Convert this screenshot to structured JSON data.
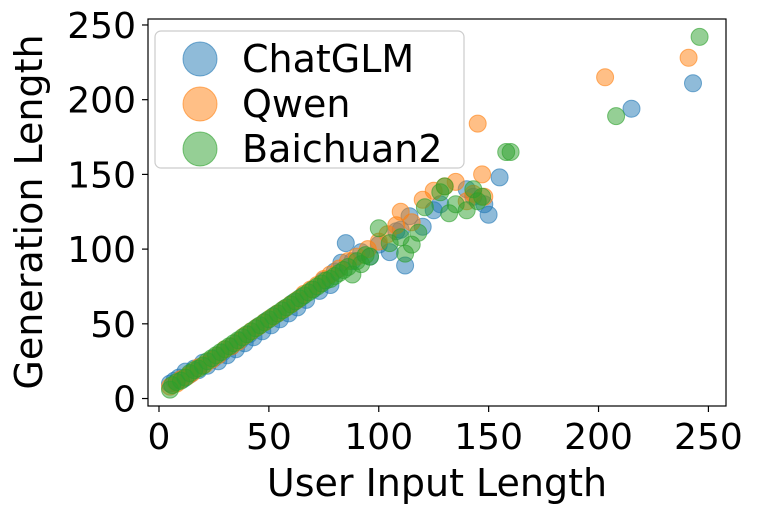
{
  "chart_data": {
    "type": "scatter",
    "xlabel": "User Input Length",
    "ylabel": "Generation Length",
    "xlim": [
      -5,
      258
    ],
    "ylim": [
      -5,
      254
    ],
    "xticks": [
      0,
      50,
      100,
      150,
      200,
      250
    ],
    "yticks": [
      0,
      50,
      100,
      150,
      200,
      250
    ],
    "grid": false,
    "legend_position": "upper-left",
    "series": [
      {
        "name": "ChatGLM",
        "color": "#1f77b4",
        "points": [
          [
            5,
            10
          ],
          [
            7,
            12
          ],
          [
            9,
            14
          ],
          [
            11,
            13
          ],
          [
            12,
            18
          ],
          [
            14,
            16
          ],
          [
            16,
            20
          ],
          [
            18,
            19
          ],
          [
            20,
            24
          ],
          [
            22,
            22
          ],
          [
            25,
            27
          ],
          [
            27,
            25
          ],
          [
            29,
            31
          ],
          [
            31,
            29
          ],
          [
            33,
            35
          ],
          [
            35,
            33
          ],
          [
            37,
            39
          ],
          [
            39,
            37
          ],
          [
            41,
            43
          ],
          [
            43,
            41
          ],
          [
            45,
            48
          ],
          [
            47,
            45
          ],
          [
            49,
            52
          ],
          [
            51,
            49
          ],
          [
            53,
            56
          ],
          [
            55,
            53
          ],
          [
            57,
            60
          ],
          [
            59,
            57
          ],
          [
            61,
            64
          ],
          [
            63,
            61
          ],
          [
            65,
            68
          ],
          [
            67,
            66
          ],
          [
            70,
            73
          ],
          [
            73,
            72
          ],
          [
            75,
            79
          ],
          [
            78,
            76
          ],
          [
            80,
            85
          ],
          [
            83,
            91
          ],
          [
            85,
            104
          ],
          [
            88,
            92
          ],
          [
            92,
            98
          ],
          [
            96,
            95
          ],
          [
            100,
            103
          ],
          [
            105,
            98
          ],
          [
            108,
            112
          ],
          [
            110,
            113
          ],
          [
            112,
            89
          ],
          [
            114,
            122
          ],
          [
            120,
            115
          ],
          [
            125,
            126
          ],
          [
            128,
            130
          ],
          [
            140,
            140
          ],
          [
            143,
            135
          ],
          [
            148,
            130
          ],
          [
            150,
            123
          ],
          [
            155,
            148
          ],
          [
            215,
            194
          ],
          [
            243,
            211
          ]
        ]
      },
      {
        "name": "Qwen",
        "color": "#ff7f0e",
        "points": [
          [
            5,
            8
          ],
          [
            8,
            10
          ],
          [
            10,
            13
          ],
          [
            13,
            15
          ],
          [
            15,
            17
          ],
          [
            18,
            21
          ],
          [
            21,
            23
          ],
          [
            24,
            26
          ],
          [
            27,
            29
          ],
          [
            30,
            33
          ],
          [
            33,
            35
          ],
          [
            36,
            38
          ],
          [
            39,
            42
          ],
          [
            42,
            45
          ],
          [
            45,
            48
          ],
          [
            48,
            51
          ],
          [
            51,
            54
          ],
          [
            54,
            57
          ],
          [
            57,
            60
          ],
          [
            60,
            63
          ],
          [
            63,
            66
          ],
          [
            66,
            70
          ],
          [
            69,
            73
          ],
          [
            72,
            76
          ],
          [
            75,
            80
          ],
          [
            78,
            83
          ],
          [
            82,
            87
          ],
          [
            86,
            92
          ],
          [
            90,
            95
          ],
          [
            95,
            100
          ],
          [
            100,
            105
          ],
          [
            104,
            110
          ],
          [
            108,
            116
          ],
          [
            110,
            125
          ],
          [
            115,
            118
          ],
          [
            120,
            133
          ],
          [
            125,
            139
          ],
          [
            130,
            142
          ],
          [
            135,
            145
          ],
          [
            140,
            132
          ],
          [
            143,
            137
          ],
          [
            145,
            184
          ],
          [
            147,
            150
          ],
          [
            148,
            135
          ],
          [
            203,
            215
          ],
          [
            241,
            228
          ]
        ]
      },
      {
        "name": "Baichuan2",
        "color": "#2ca02c",
        "points": [
          [
            5,
            6
          ],
          [
            6,
            9
          ],
          [
            8,
            11
          ],
          [
            10,
            12
          ],
          [
            12,
            14
          ],
          [
            14,
            17
          ],
          [
            16,
            19
          ],
          [
            18,
            20
          ],
          [
            20,
            22
          ],
          [
            22,
            25
          ],
          [
            24,
            27
          ],
          [
            26,
            29
          ],
          [
            28,
            31
          ],
          [
            30,
            33
          ],
          [
            32,
            35
          ],
          [
            34,
            37
          ],
          [
            36,
            39
          ],
          [
            38,
            41
          ],
          [
            40,
            43
          ],
          [
            42,
            45
          ],
          [
            44,
            47
          ],
          [
            46,
            49
          ],
          [
            48,
            51
          ],
          [
            50,
            53
          ],
          [
            52,
            55
          ],
          [
            54,
            57
          ],
          [
            56,
            59
          ],
          [
            58,
            61
          ],
          [
            60,
            63
          ],
          [
            62,
            65
          ],
          [
            64,
            67
          ],
          [
            66,
            69
          ],
          [
            68,
            71
          ],
          [
            70,
            73
          ],
          [
            72,
            75
          ],
          [
            74,
            77
          ],
          [
            76,
            79
          ],
          [
            78,
            80
          ],
          [
            80,
            82
          ],
          [
            82,
            84
          ],
          [
            84,
            86
          ],
          [
            86,
            88
          ],
          [
            88,
            83
          ],
          [
            90,
            92
          ],
          [
            92,
            90
          ],
          [
            94,
            96
          ],
          [
            96,
            95
          ],
          [
            100,
            114
          ],
          [
            105,
            104
          ],
          [
            110,
            108
          ],
          [
            112,
            97
          ],
          [
            115,
            103
          ],
          [
            118,
            111
          ],
          [
            121,
            128
          ],
          [
            128,
            138
          ],
          [
            130,
            142
          ],
          [
            132,
            124
          ],
          [
            135,
            130
          ],
          [
            140,
            126
          ],
          [
            143,
            140
          ],
          [
            145,
            132
          ],
          [
            147,
            135
          ],
          [
            158,
            165
          ],
          [
            160,
            165
          ],
          [
            208,
            189
          ],
          [
            246,
            242
          ]
        ]
      }
    ]
  }
}
